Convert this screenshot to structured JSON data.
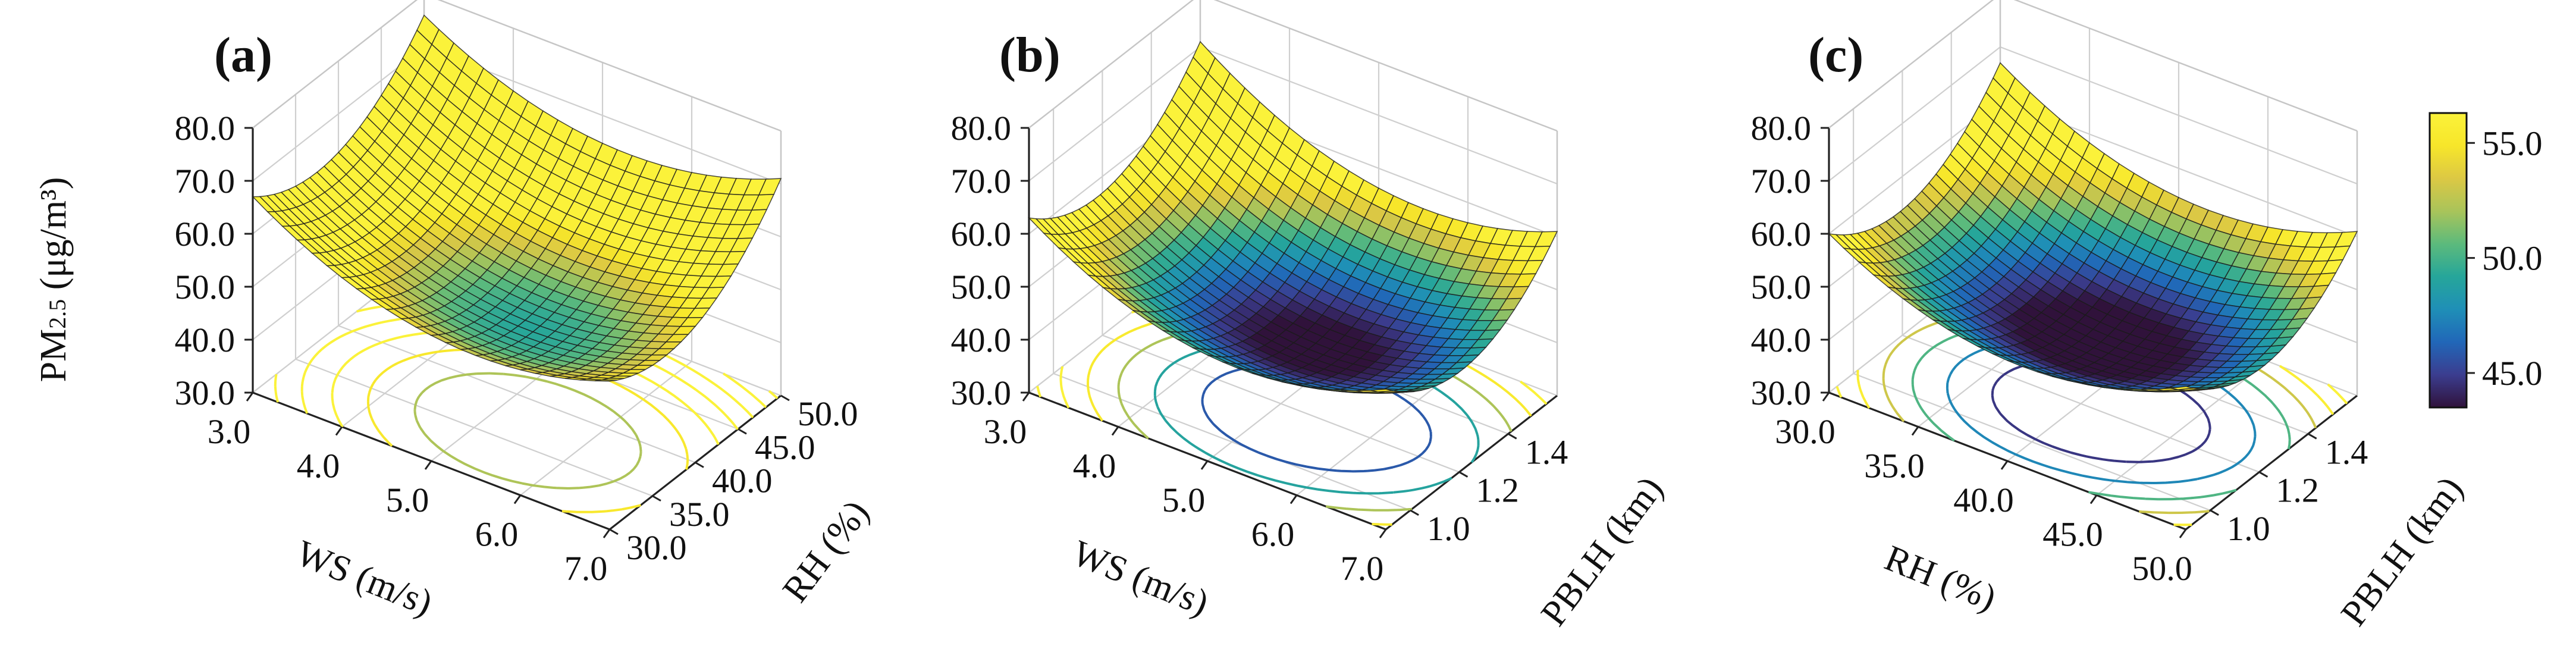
{
  "chart_data": [
    {
      "type": "surface3d",
      "panel_label": "(a)",
      "zlabel": "PM2.5 (μg/m³)",
      "zlabel_main": "PM",
      "zlabel_sub": "2.5",
      "zlabel_unit": " (μg/m³)",
      "xlabel": "WS (m/s)",
      "ylabel": "RH (%)",
      "xlim": [
        3.0,
        7.0
      ],
      "ylim": [
        30.0,
        50.0
      ],
      "zlim": [
        30.0,
        80.0
      ],
      "xticks": [
        "3.0",
        "4.0",
        "5.0",
        "6.0",
        "7.0"
      ],
      "yticks": [
        "30.0",
        "35.0",
        "40.0",
        "45.0",
        "50.0"
      ],
      "zticks": [
        "30.0",
        "40.0",
        "50.0",
        "60.0",
        "70.0",
        "80.0"
      ],
      "surface_samples": [
        {
          "x": 3.0,
          "y": 30.0,
          "z": 67.0
        },
        {
          "x": 3.0,
          "y": 50.0,
          "z": 76.0
        },
        {
          "x": 7.0,
          "y": 30.0,
          "z": 58.0
        },
        {
          "x": 7.0,
          "y": 50.0,
          "z": 71.0
        },
        {
          "x": 5.2,
          "y": 40.5,
          "z": 50.5
        }
      ]
    },
    {
      "type": "surface3d",
      "panel_label": "(b)",
      "xlabel": "WS (m/s)",
      "ylabel": "PBLH (km)",
      "xlim": [
        3.0,
        7.0
      ],
      "ylim": [
        0.9,
        1.6
      ],
      "zlim": [
        30.0,
        80.0
      ],
      "xticks": [
        "3.0",
        "4.0",
        "5.0",
        "6.0",
        "7.0"
      ],
      "yticks": [
        "1.0",
        "1.2",
        "1.4"
      ],
      "zticks": [
        "30.0",
        "40.0",
        "50.0",
        "60.0",
        "70.0",
        "80.0"
      ],
      "surface_samples": [
        {
          "x": 3.0,
          "y": 0.9,
          "z": 63.0
        },
        {
          "x": 3.0,
          "y": 1.6,
          "z": 71.0
        },
        {
          "x": 7.0,
          "y": 0.9,
          "z": 56.5
        },
        {
          "x": 7.0,
          "y": 1.6,
          "z": 61.0
        },
        {
          "x": 5.5,
          "y": 1.4,
          "z": 46.0
        }
      ]
    },
    {
      "type": "surface3d",
      "panel_label": "(c)",
      "xlabel": "RH (%)",
      "ylabel": "PBLH (km)",
      "xlim": [
        30.0,
        50.0
      ],
      "ylim": [
        0.9,
        1.6
      ],
      "zlim": [
        30.0,
        80.0
      ],
      "xticks": [
        "30.0",
        "35.0",
        "40.0",
        "45.0",
        "50.0"
      ],
      "yticks": [
        "1.0",
        "1.2",
        "1.4"
      ],
      "zticks": [
        "30.0",
        "40.0",
        "50.0",
        "60.0",
        "70.0",
        "80.0"
      ],
      "surface_samples": [
        {
          "x": 30.0,
          "y": 0.9,
          "z": 60.0
        },
        {
          "x": 30.0,
          "y": 1.6,
          "z": 67.0
        },
        {
          "x": 50.0,
          "y": 0.9,
          "z": 57.0
        },
        {
          "x": 50.0,
          "y": 1.6,
          "z": 61.0
        },
        {
          "x": 41.0,
          "y": 1.4,
          "z": 45.0
        }
      ]
    }
  ],
  "colorbar": {
    "min": 43.5,
    "max": 56.3,
    "ticks": [
      "45.0",
      "50.0",
      "55.0"
    ],
    "tick_values": [
      45.0,
      50.0,
      55.0
    ],
    "colormap": [
      "#30123b",
      "#3b3d8f",
      "#2167b8",
      "#1f8fb7",
      "#26a69a",
      "#5cba7c",
      "#a9c45a",
      "#dcc844",
      "#f7e62a",
      "#fbf23a"
    ]
  }
}
